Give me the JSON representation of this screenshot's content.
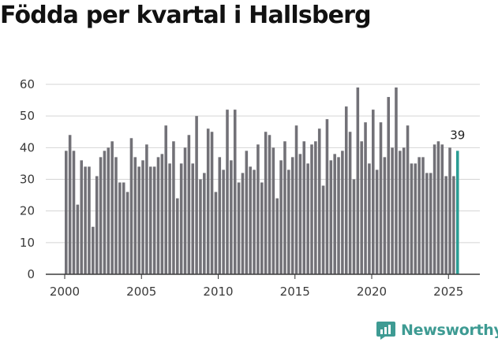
{
  "chart_data": {
    "type": "bar",
    "title": "Födda per kvartal i Hallsberg",
    "xlabel": "",
    "ylabel": "",
    "ylim": [
      0,
      60
    ],
    "yticks": [
      0,
      10,
      20,
      30,
      40,
      50,
      60
    ],
    "xticks": [
      2000,
      2005,
      2010,
      2015,
      2020,
      2025
    ],
    "grid": true,
    "start": {
      "year": 2000,
      "quarter": 1
    },
    "values": [
      39,
      44,
      39,
      22,
      36,
      34,
      34,
      15,
      31,
      37,
      39,
      40,
      42,
      37,
      29,
      29,
      26,
      43,
      37,
      34,
      36,
      41,
      34,
      34,
      37,
      38,
      47,
      35,
      42,
      24,
      35,
      40,
      44,
      35,
      50,
      30,
      32,
      46,
      45,
      26,
      37,
      33,
      52,
      36,
      52,
      29,
      32,
      39,
      34,
      33,
      41,
      29,
      45,
      44,
      40,
      24,
      36,
      42,
      33,
      37,
      47,
      38,
      42,
      35,
      41,
      42,
      46,
      28,
      49,
      36,
      38,
      37,
      39,
      53,
      45,
      30,
      59,
      42,
      48,
      35,
      52,
      33,
      48,
      37,
      56,
      40,
      59,
      39,
      40,
      47,
      35,
      35,
      37,
      37,
      32,
      32,
      41,
      42,
      41,
      31,
      40,
      31,
      39
    ],
    "last_value_label": "39",
    "bar_color": "#727177",
    "highlight_color": "#2a9d94"
  },
  "brand": {
    "name": "Newsworthy",
    "icon": "newsworthy-logo-icon",
    "color": "#3e9b93"
  }
}
